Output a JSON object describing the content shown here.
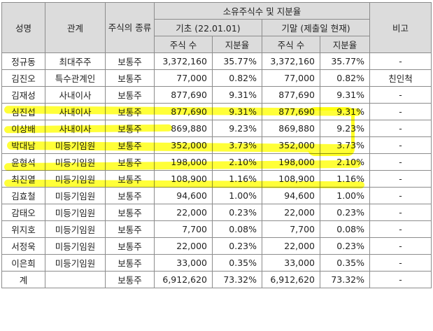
{
  "headers": {
    "name": "성명",
    "relation": "관계",
    "stock_type": "주식의 종류",
    "holdings": "소유주식수 및 지분율",
    "start_period": "기초 (22.01.01)",
    "end_period": "기말 (제출일 현재)",
    "shares": "주식 수",
    "ratio": "지분율",
    "note": "비고"
  },
  "rows": [
    {
      "name": "정규동",
      "relation": "최대주주",
      "type": "보통주",
      "start_shares": "3,372,160",
      "start_ratio": "35.77%",
      "end_shares": "3,372,160",
      "end_ratio": "35.77%",
      "note": "-"
    },
    {
      "name": "김진오",
      "relation": "특수관계인",
      "type": "보통주",
      "start_shares": "77,000",
      "start_ratio": "0.82%",
      "end_shares": "77,000",
      "end_ratio": "0.82%",
      "note": "친인척"
    },
    {
      "name": "김재성",
      "relation": "사내이사",
      "type": "보통주",
      "start_shares": "877,690",
      "start_ratio": "9.31%",
      "end_shares": "877,690",
      "end_ratio": "9.31%",
      "note": "-"
    },
    {
      "name": "심진섭",
      "relation": "사내이사",
      "type": "보통주",
      "start_shares": "877,690",
      "start_ratio": "9.31%",
      "end_shares": "877,690",
      "end_ratio": "9.31%",
      "note": "-"
    },
    {
      "name": "이상배",
      "relation": "사내이사",
      "type": "보통주",
      "start_shares": "869,880",
      "start_ratio": "9.23%",
      "end_shares": "869,880",
      "end_ratio": "9.23%",
      "note": "-"
    },
    {
      "name": "박대남",
      "relation": "미등기임원",
      "type": "보통주",
      "start_shares": "352,000",
      "start_ratio": "3.73%",
      "end_shares": "352,000",
      "end_ratio": "3.73%",
      "note": "-"
    },
    {
      "name": "윤형석",
      "relation": "미등기임원",
      "type": "보통주",
      "start_shares": "198,000",
      "start_ratio": "2.10%",
      "end_shares": "198,000",
      "end_ratio": "2.10%",
      "note": "-"
    },
    {
      "name": "최진열",
      "relation": "미등기임원",
      "type": "보통주",
      "start_shares": "108,900",
      "start_ratio": "1.16%",
      "end_shares": "108,900",
      "end_ratio": "1.16%",
      "note": "-"
    },
    {
      "name": "김효철",
      "relation": "미등기임원",
      "type": "보통주",
      "start_shares": "94,600",
      "start_ratio": "1.00%",
      "end_shares": "94,600",
      "end_ratio": "1.00%",
      "note": "-"
    },
    {
      "name": "감태오",
      "relation": "미등기임원",
      "type": "보통주",
      "start_shares": "22,000",
      "start_ratio": "0.23%",
      "end_shares": "22,000",
      "end_ratio": "0.23%",
      "note": "-"
    },
    {
      "name": "위지호",
      "relation": "미등기임원",
      "type": "보통주",
      "start_shares": "7,700",
      "start_ratio": "0.08%",
      "end_shares": "7,700",
      "end_ratio": "0.08%",
      "note": "-"
    },
    {
      "name": "서정욱",
      "relation": "미등기임원",
      "type": "보통주",
      "start_shares": "22,000",
      "start_ratio": "0.23%",
      "end_shares": "22,000",
      "end_ratio": "0.23%",
      "note": "-"
    },
    {
      "name": "이은희",
      "relation": "미등기임원",
      "type": "보통주",
      "start_shares": "33,000",
      "start_ratio": "0.35%",
      "end_shares": "33,000",
      "end_ratio": "0.35%",
      "note": "-"
    }
  ],
  "total": {
    "name": "계",
    "type": "보통주",
    "start_shares": "6,912,620",
    "start_ratio": "73.32%",
    "end_shares": "6,912,620",
    "end_ratio": "73.32%",
    "note": "-"
  },
  "highlight_color": "#ffff00"
}
